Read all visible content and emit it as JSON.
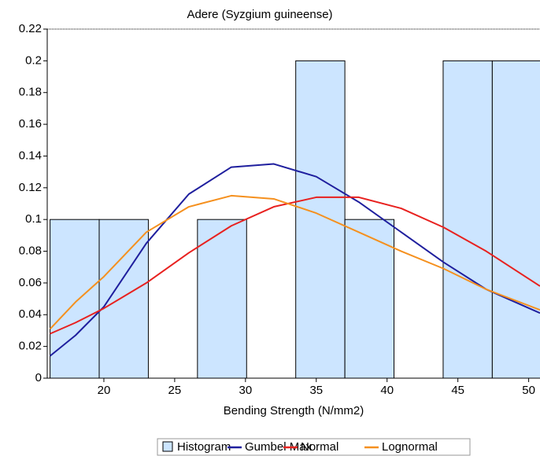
{
  "chart_data": {
    "type": "histogram",
    "title": "Adere (Syzgium guineense)",
    "x_label": "Bending Strength (N/mm2)",
    "xlim": [
      16,
      50.8
    ],
    "ylim": [
      0,
      0.22
    ],
    "xticks": [
      20,
      25,
      30,
      35,
      40,
      45,
      50
    ],
    "yticks": [
      0,
      0.02,
      0.04,
      0.06,
      0.08,
      0.1,
      0.12,
      0.14,
      0.16,
      0.18,
      0.2,
      0.22
    ],
    "grid": false,
    "histogram": {
      "name": "Histogram",
      "color": "#cce5ff",
      "bins": [
        16.2,
        19.67,
        23.14,
        26.61,
        30.08,
        33.55,
        37.02,
        40.49,
        43.96,
        47.43,
        50.9
      ],
      "values": [
        0.1,
        0.1,
        0,
        0.1,
        0,
        0.2,
        0.1,
        0,
        0.2,
        0.2
      ]
    },
    "series": [
      {
        "name": "Gumbel Max",
        "color": "#1f1f9e",
        "x": [
          16.2,
          18,
          20,
          23,
          26,
          29,
          32,
          35,
          38,
          41,
          44,
          47,
          50.8
        ],
        "values": [
          0.014,
          0.027,
          0.045,
          0.085,
          0.116,
          0.133,
          0.135,
          0.127,
          0.111,
          0.092,
          0.073,
          0.056,
          0.041
        ]
      },
      {
        "name": "Normal",
        "color": "#e8211f",
        "x": [
          16.2,
          18,
          20,
          23,
          26,
          29,
          32,
          35,
          38,
          41,
          44,
          47,
          50.8
        ],
        "values": [
          0.028,
          0.035,
          0.044,
          0.06,
          0.079,
          0.096,
          0.108,
          0.114,
          0.114,
          0.107,
          0.095,
          0.08,
          0.058
        ]
      },
      {
        "name": "Lognormal",
        "color": "#f5901e",
        "x": [
          16.2,
          18,
          20,
          23,
          26,
          29,
          32,
          35,
          38,
          41,
          44,
          47,
          50.8
        ],
        "values": [
          0.031,
          0.048,
          0.064,
          0.092,
          0.108,
          0.115,
          0.113,
          0.104,
          0.092,
          0.08,
          0.069,
          0.056,
          0.043
        ]
      }
    ]
  }
}
